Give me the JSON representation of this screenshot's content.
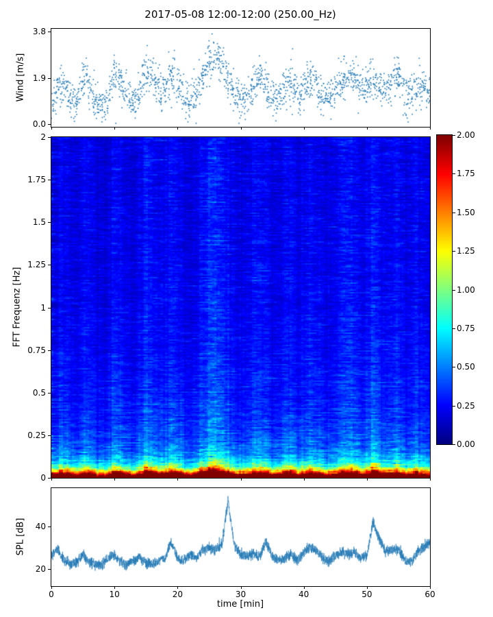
{
  "title": "2017-05-08 12:00-12:00 (250.00_Hz)",
  "colors": {
    "series": "#1f77b4",
    "background": "#ffffff",
    "axes": "#000000"
  },
  "chart_data": [
    {
      "type": "scatter",
      "name": "wind-speed",
      "ylabel": "Wind [m/s]",
      "ylim": [
        -0.1,
        3.9
      ],
      "ytick_values": [
        0.0,
        1.9,
        3.8
      ],
      "ytick_labels": [
        "0.0",
        "1.9",
        "3.8"
      ],
      "xlim": [
        0,
        60
      ],
      "points_per_minute": 30,
      "scatter_sigma": 0.38,
      "profile_minutes_step": 1,
      "profile_values": [
        0.9,
        1.4,
        1.6,
        1.0,
        0.8,
        1.9,
        1.5,
        0.9,
        0.8,
        1.0,
        2.1,
        1.8,
        1.1,
        0.9,
        1.5,
        2.2,
        1.9,
        1.2,
        1.4,
        2.0,
        1.7,
        1.1,
        0.9,
        1.3,
        2.0,
        2.6,
        2.8,
        2.5,
        1.8,
        1.2,
        1.0,
        1.1,
        1.6,
        2.0,
        1.6,
        1.1,
        1.0,
        1.5,
        1.7,
        1.0,
        1.5,
        2.0,
        1.6,
        1.1,
        1.0,
        1.4,
        1.8,
        1.9,
        2.0,
        1.4,
        1.5,
        1.9,
        1.6,
        1.4,
        1.8,
        2.0,
        1.3,
        1.2,
        1.7,
        1.4,
        1.2
      ]
    },
    {
      "type": "heatmap",
      "name": "fft-spectrogram",
      "ylabel": "FFT Frequenz [Hz]",
      "ylim": [
        0,
        2
      ],
      "ytick_values": [
        2,
        1.75,
        1.5,
        1.25,
        1,
        0.75,
        0.5,
        0.25,
        0
      ],
      "ytick_labels": [
        "2",
        "1.75",
        "1.5",
        "1.25",
        "1",
        "0.75",
        "0.5",
        "0.25",
        "0"
      ],
      "xlim": [
        0,
        60
      ],
      "colormap": "jet",
      "value_lim": [
        0,
        2
      ],
      "colorbar": {
        "lim": [
          0,
          2
        ],
        "tick_values": [
          2.0,
          1.75,
          1.5,
          1.25,
          1.0,
          0.75,
          0.5,
          0.25,
          0.0
        ],
        "tick_labels": [
          "2.00",
          "1.75",
          "1.50",
          "1.25",
          "1.00",
          "0.75",
          "0.50",
          "0.25",
          "0.00"
        ]
      },
      "column_intensity": [
        0.91,
        1.11,
        1.19,
        0.95,
        0.87,
        1.31,
        1.15,
        0.91,
        0.87,
        0.95,
        1.39,
        1.27,
        0.99,
        0.91,
        1.15,
        1.43,
        1.31,
        1.03,
        1.11,
        1.35,
        1.23,
        0.99,
        0.91,
        1.07,
        1.35,
        1.59,
        1.67,
        1.55,
        1.27,
        1.03,
        0.95,
        0.99,
        1.19,
        1.35,
        1.19,
        0.99,
        0.95,
        1.15,
        1.23,
        0.95,
        1.15,
        1.35,
        1.19,
        0.99,
        0.95,
        1.07,
        1.27,
        1.31,
        1.35,
        1.07,
        1.15,
        1.43,
        1.27,
        1.11,
        1.27,
        1.35,
        1.03,
        0.99,
        1.23,
        1.07,
        0.99
      ],
      "freq_profile": {
        "base": 0.1,
        "base_noise": 0.3,
        "lowband_amp": 2.1,
        "lowband_decay": 0.03,
        "midband_amp": 0.9,
        "midband_decay": 0.09,
        "broad_amp": 0.5,
        "broad_decay": 0.45
      }
    },
    {
      "type": "line",
      "name": "sound-pressure-level",
      "ylabel": "SPL [dB]",
      "xlabel": "time [min]",
      "ylim": [
        12,
        58
      ],
      "ytick_values": [
        20,
        40
      ],
      "ytick_labels": [
        "20",
        "40"
      ],
      "xlim": [
        0,
        60
      ],
      "xtick_values": [
        0,
        10,
        20,
        30,
        40,
        50,
        60
      ],
      "xtick_labels": [
        "0",
        "10",
        "20",
        "30",
        "40",
        "50",
        "60"
      ],
      "noise_amp": 2.2,
      "profile_values": [
        26,
        30,
        24,
        22,
        23,
        27,
        23,
        22,
        22,
        25,
        27,
        23,
        22,
        24,
        25,
        23,
        22,
        24,
        25,
        33,
        25,
        24,
        27,
        25,
        29,
        30,
        29,
        31,
        52,
        31,
        27,
        26,
        27,
        26,
        33,
        26,
        24,
        25,
        27,
        24,
        28,
        30,
        29,
        25,
        24,
        26,
        28,
        27,
        28,
        25,
        26,
        42,
        34,
        28,
        30,
        29,
        24,
        23,
        28,
        30,
        33
      ]
    }
  ]
}
